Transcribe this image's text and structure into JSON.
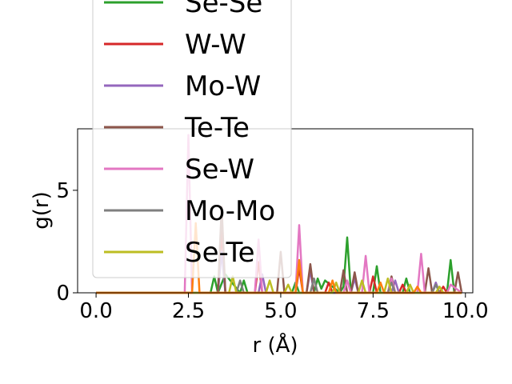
{
  "chart_data": {
    "type": "line",
    "xlabel": "r (Å)",
    "ylabel": "g(r)",
    "xlim": [
      -0.5,
      10.2
    ],
    "ylim": [
      0,
      8
    ],
    "xticks": [
      "0.0",
      "2.5",
      "5.0",
      "7.5",
      "10.0"
    ],
    "xtick_values": [
      0,
      2.5,
      5,
      7.5,
      10
    ],
    "yticks": [
      "0",
      "5"
    ],
    "ytick_values": [
      0,
      5
    ],
    "grid": false,
    "legend_position": "upper-left, overflowing above axes",
    "series": [
      {
        "name": "Se-Se",
        "color": "#2ca02c",
        "x": [
          0,
          3.1,
          3.2,
          3.3,
          3.5,
          3.9,
          4.0,
          4.1,
          5.3,
          5.4,
          5.5,
          5.9,
          6.0,
          6.1,
          6.2,
          6.6,
          6.7,
          6.8,
          6.9,
          7.5,
          7.6,
          7.7,
          8.3,
          8.4,
          8.5,
          9.5,
          9.6,
          9.7,
          9.9
        ],
        "y": [
          0,
          0,
          0.8,
          0,
          0.9,
          0,
          0.6,
          0,
          0,
          0.5,
          0,
          0,
          0.7,
          0.2,
          0.6,
          0,
          0.3,
          2.7,
          0,
          0,
          1.3,
          0,
          0,
          0.7,
          0,
          0,
          1.6,
          0,
          0
        ]
      },
      {
        "name": "W-W",
        "color": "#d62728",
        "x": [
          0,
          3.3,
          3.4,
          3.5,
          4.3,
          4.4,
          4.5,
          5.4,
          5.5,
          5.6,
          6.2,
          6.3,
          6.4,
          7.4,
          7.5,
          7.6,
          8.2,
          8.3,
          8.4,
          9.3,
          9.4,
          9.5,
          9.9
        ],
        "y": [
          0,
          0,
          3.0,
          0,
          0,
          1.5,
          0,
          0,
          1.2,
          0,
          0,
          0.5,
          0,
          0,
          0.8,
          0,
          0,
          0.4,
          0,
          0,
          0.3,
          0,
          0
        ]
      },
      {
        "name": "Mo-W",
        "color": "#9467bd",
        "x": [
          0,
          3.3,
          3.4,
          3.5,
          4.4,
          4.5,
          4.6,
          5.7,
          5.8,
          5.9,
          6.9,
          7.0,
          7.1,
          8.0,
          8.1,
          8.2,
          9.1,
          9.2,
          9.3,
          9.9
        ],
        "y": [
          0,
          0,
          2.0,
          0,
          0,
          0.9,
          0,
          0,
          1.1,
          0,
          0,
          0.7,
          0,
          0,
          0.6,
          0,
          0,
          0.5,
          0,
          0
        ]
      },
      {
        "name": "Te-Te",
        "color": "#8c564b",
        "x": [
          0,
          3.3,
          3.4,
          3.5,
          4.9,
          5.0,
          5.1,
          5.7,
          5.8,
          5.9,
          6.6,
          6.7,
          6.8,
          6.9,
          7.0,
          7.1,
          7.9,
          8.0,
          8.1,
          8.9,
          9.0,
          9.1,
          9.7,
          9.8,
          9.9
        ],
        "y": [
          0,
          0,
          4.2,
          0,
          0,
          2.0,
          0,
          0,
          1.4,
          0,
          0,
          1.1,
          0,
          0,
          1.0,
          0,
          0,
          0.8,
          0,
          0,
          1.2,
          0,
          0,
          1.0,
          0
        ]
      },
      {
        "name": "Se-W",
        "color": "#e377c2",
        "x": [
          0,
          2.4,
          2.5,
          2.6,
          4.3,
          4.4,
          4.5,
          5.4,
          5.5,
          5.6,
          6.7,
          6.8,
          6.9,
          7.2,
          7.3,
          7.4,
          7.9,
          8.0,
          8.1,
          8.7,
          8.8,
          8.9,
          9.5,
          9.6,
          9.9
        ],
        "y": [
          0,
          0,
          7.7,
          0,
          0,
          2.6,
          0,
          0,
          3.3,
          0,
          0,
          0.6,
          0,
          0,
          1.8,
          0,
          0,
          0.7,
          0,
          0,
          1.9,
          0,
          0,
          0.4,
          0
        ]
      },
      {
        "name": "Mo-Mo",
        "color": "#7f7f7f",
        "x": [
          0,
          3.8,
          3.9,
          4.0,
          5.8,
          5.9,
          6.0,
          7.9,
          8.0,
          8.1,
          9.1,
          9.2,
          9.3,
          9.9
        ],
        "y": [
          0,
          0,
          0.6,
          0,
          0,
          0.7,
          0,
          0,
          0.5,
          0,
          0,
          0.4,
          0,
          0
        ]
      },
      {
        "name": "Se-Te",
        "color": "#bcbd22",
        "x": [
          0,
          3.6,
          3.7,
          3.8,
          4.6,
          4.7,
          4.8,
          5.1,
          5.2,
          5.3,
          6.4,
          6.5,
          6.6,
          7.1,
          7.2,
          7.3,
          7.8,
          7.9,
          8.0,
          8.4,
          8.5,
          8.6,
          9.2,
          9.3,
          9.4,
          9.9
        ],
        "y": [
          0,
          0,
          0.8,
          0,
          0,
          0.6,
          0,
          0,
          0.4,
          0,
          0,
          0.5,
          0,
          0,
          0.6,
          0,
          0,
          0.7,
          0,
          0,
          0.4,
          0,
          0,
          0.3,
          0,
          0
        ]
      },
      {
        "color": "#ff7f0e",
        "x": [
          0,
          2.6,
          2.7,
          2.8,
          5.4,
          5.5,
          5.6,
          6.3,
          6.4,
          6.5,
          7.6,
          7.7,
          7.8,
          8.6,
          8.7,
          8.8,
          9.9
        ],
        "y": [
          0,
          0,
          3.4,
          0,
          0,
          1.6,
          0,
          0,
          0.6,
          0,
          0,
          0.5,
          0,
          0,
          0.3,
          0,
          0
        ]
      }
    ]
  }
}
